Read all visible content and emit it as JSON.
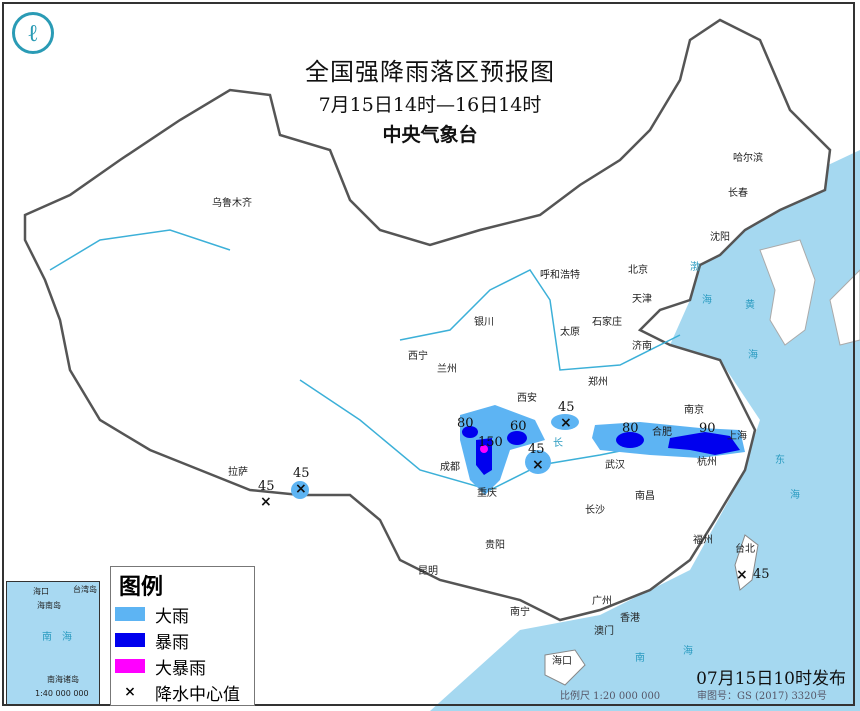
{
  "header": {
    "title": "全国强降雨落区预报图",
    "period": "7月15日14时—16日14时",
    "issuer": "中央气象台"
  },
  "logo": {
    "icon": "cma-logo"
  },
  "colors": {
    "heavy_rain": "#5db4f3",
    "rainstorm": "#0000ee",
    "heavy_rainstorm": "#ff00ff",
    "sea": "#a5d8f0"
  },
  "legend": {
    "title": "图例",
    "items": [
      {
        "label": "大雨",
        "color": "#5db4f3"
      },
      {
        "label": "暴雨",
        "color": "#0000ee"
      },
      {
        "label": "大暴雨",
        "color": "#ff00ff"
      },
      {
        "label": "降水中心值",
        "symbol": "×"
      }
    ]
  },
  "inset": {
    "labels": [
      "海口",
      "海南岛",
      "台湾岛",
      "南",
      "海",
      "南海诸岛"
    ],
    "scale": "1:40 000 000"
  },
  "cities": [
    "乌鲁木齐",
    "哈尔滨",
    "长春",
    "沈阳",
    "呼和浩特",
    "北京",
    "天津",
    "石家庄",
    "太原",
    "银川",
    "西宁",
    "兰州",
    "济南",
    "郑州",
    "西安",
    "南京",
    "合肥",
    "武汉",
    "杭州",
    "上海",
    "成都",
    "重庆",
    "长沙",
    "南昌",
    "拉萨",
    "贵阳",
    "福州",
    "台北",
    "昆明",
    "南宁",
    "广州",
    "香港",
    "澳门",
    "海口"
  ],
  "rain_centers": [
    "45",
    "45",
    "80",
    "150",
    "60",
    "45",
    "45",
    "80",
    "90",
    "45"
  ],
  "sea_labels": [
    "渤",
    "海",
    "黄",
    "海",
    "东",
    "海",
    "南",
    "海",
    "长"
  ],
  "footer": {
    "published": "07月15日10时发布",
    "scale": "比例尺 1:20 000 000",
    "review_no": "审图号：GS (2017) 3320号"
  }
}
